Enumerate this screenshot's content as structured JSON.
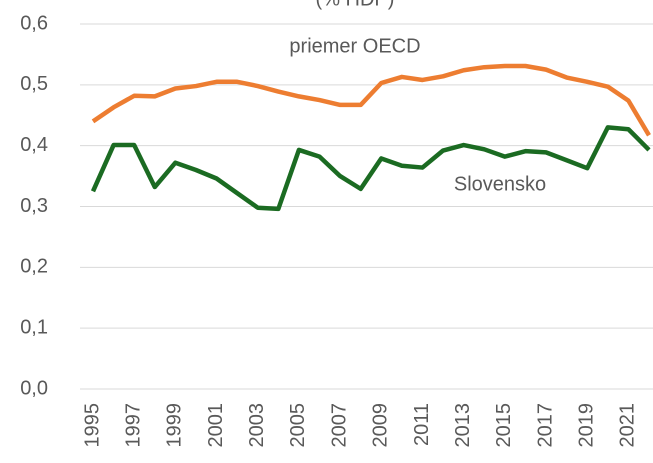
{
  "chart_data": {
    "type": "line",
    "subtitle": "(% HDP)",
    "x": [
      1995,
      1996,
      1997,
      1998,
      1999,
      2000,
      2001,
      2002,
      2003,
      2004,
      2005,
      2006,
      2007,
      2008,
      2009,
      2010,
      2011,
      2012,
      2013,
      2014,
      2015,
      2016,
      2017,
      2018,
      2019,
      2020,
      2021,
      2022
    ],
    "series": [
      {
        "name": "priemer OECD",
        "color": "#ed7d31",
        "values": [
          0.44,
          0.463,
          0.482,
          0.481,
          0.494,
          0.498,
          0.505,
          0.505,
          0.498,
          0.489,
          0.481,
          0.475,
          0.467,
          0.467,
          0.503,
          0.513,
          0.508,
          0.514,
          0.524,
          0.529,
          0.531,
          0.531,
          0.525,
          0.512,
          0.505,
          0.497,
          0.474,
          0.417
        ]
      },
      {
        "name": "Slovensko",
        "color": "#1b6b22",
        "values": [
          0.325,
          0.401,
          0.401,
          0.332,
          0.372,
          0.36,
          0.346,
          0.322,
          0.298,
          0.296,
          0.393,
          0.382,
          0.35,
          0.329,
          0.379,
          0.367,
          0.364,
          0.392,
          0.401,
          0.394,
          0.382,
          0.391,
          0.389,
          0.376,
          0.363,
          0.43,
          0.427,
          0.393
        ]
      }
    ],
    "xlim": [
      1995,
      2022
    ],
    "xticks": [
      1995,
      1997,
      1999,
      2001,
      2003,
      2005,
      2007,
      2009,
      2011,
      2013,
      2015,
      2017,
      2019,
      2021
    ],
    "ylim": [
      0,
      0.6
    ],
    "yticks": [
      {
        "value": 0,
        "label": "0,0"
      },
      {
        "value": 0.1,
        "label": "0,1"
      },
      {
        "value": 0.2,
        "label": "0,2"
      },
      {
        "value": 0.3,
        "label": "0,3"
      },
      {
        "value": 0.4,
        "label": "0,4"
      },
      {
        "value": 0.5,
        "label": "0,5"
      },
      {
        "value": 0.6,
        "label": "0,6"
      }
    ],
    "grid": true
  }
}
